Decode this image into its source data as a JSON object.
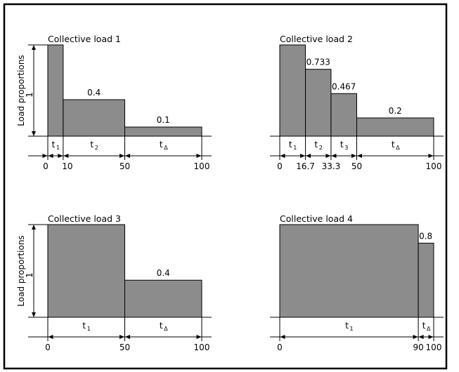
{
  "colors": {
    "bar_fill": "#8c8c8c",
    "line": "#000000",
    "background": "#ffffff"
  },
  "chart_data": [
    {
      "type": "bar",
      "title": "Collective load 1",
      "ylabel_main": "Load proportions",
      "ylabel_value": "1",
      "xlim": [
        0,
        100
      ],
      "ylim": [
        0,
        1
      ],
      "segments": [
        {
          "x0": 0,
          "x1": 10,
          "value": 1,
          "value_label": "",
          "interval": "t",
          "interval_sub": "1"
        },
        {
          "x0": 10,
          "x1": 50,
          "value": 0.4,
          "value_label": "0.4",
          "interval": "t",
          "interval_sub": "2"
        },
        {
          "x0": 50,
          "x1": 100,
          "value": 0.1,
          "value_label": "0.1",
          "interval": "t",
          "interval_sub": "Δ"
        }
      ],
      "ticks": [
        "0",
        "10",
        "50",
        "100"
      ]
    },
    {
      "type": "bar",
      "title": "Collective load 2",
      "xlim": [
        0,
        100
      ],
      "ylim": [
        0,
        1
      ],
      "segments": [
        {
          "x0": 0,
          "x1": 16.7,
          "value": 1,
          "value_label": "",
          "interval": "t",
          "interval_sub": "1"
        },
        {
          "x0": 16.7,
          "x1": 33.3,
          "value": 0.733,
          "value_label": "0.733",
          "interval": "t",
          "interval_sub": "2"
        },
        {
          "x0": 33.3,
          "x1": 50,
          "value": 0.467,
          "value_label": "0.467",
          "interval": "t",
          "interval_sub": "3"
        },
        {
          "x0": 50,
          "x1": 100,
          "value": 0.2,
          "value_label": "0.2",
          "interval": "t",
          "interval_sub": "Δ"
        }
      ],
      "ticks": [
        "0",
        "16.7",
        "33.3",
        "50",
        "100"
      ]
    },
    {
      "type": "bar",
      "title": "Collective load 3",
      "ylabel_main": "Load proportions",
      "ylabel_value": "1",
      "xlim": [
        0,
        100
      ],
      "ylim": [
        0,
        1
      ],
      "segments": [
        {
          "x0": 0,
          "x1": 50,
          "value": 1,
          "value_label": "",
          "interval": "t",
          "interval_sub": "1"
        },
        {
          "x0": 50,
          "x1": 100,
          "value": 0.4,
          "value_label": "0.4",
          "interval": "t",
          "interval_sub": "Δ"
        }
      ],
      "ticks": [
        "0",
        "50",
        "100"
      ]
    },
    {
      "type": "bar",
      "title": "Collective load 4",
      "xlim": [
        0,
        100
      ],
      "ylim": [
        0,
        1
      ],
      "segments": [
        {
          "x0": 0,
          "x1": 90,
          "value": 1,
          "value_label": "",
          "interval": "t",
          "interval_sub": "1"
        },
        {
          "x0": 90,
          "x1": 100,
          "value": 0.8,
          "value_label": "0.8",
          "interval": "t",
          "interval_sub": "Δ"
        }
      ],
      "ticks": [
        "0",
        "90",
        "100"
      ]
    }
  ]
}
